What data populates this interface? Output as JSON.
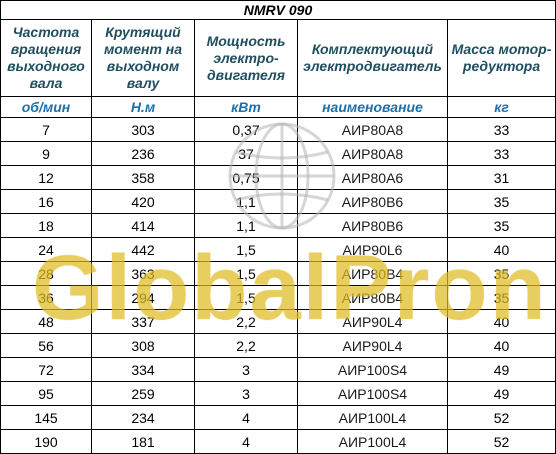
{
  "title": "NMRV 090",
  "headers": [
    "Частота вращения выходного вала",
    "Крутящий момент на выходном валу",
    "Мощность электро-двигателя",
    "Комплектующий электродвигатель",
    "Масса мотор-редуктора"
  ],
  "units": [
    "об/мин",
    "Н.м",
    "кВт",
    "наименование",
    "кг"
  ],
  "rows": [
    [
      "7",
      "303",
      "0,37",
      "АИР80А8",
      "33"
    ],
    [
      "9",
      "236",
      "37",
      "АИР80А8",
      "33"
    ],
    [
      "12",
      "358",
      "0,75",
      "АИР80А6",
      "31"
    ],
    [
      "16",
      "420",
      "1,1",
      "АИР80В6",
      "35"
    ],
    [
      "18",
      "414",
      "1,1",
      "АИР80В6",
      "35"
    ],
    [
      "24",
      "442",
      "1,5",
      "АИР90L6",
      "40"
    ],
    [
      "28",
      "363",
      "1,5",
      "АИР80В4",
      "35"
    ],
    [
      "36",
      "294",
      "1,5",
      "АИР80В4",
      "35"
    ],
    [
      "48",
      "337",
      "2,2",
      "АИР90L4",
      "40"
    ],
    [
      "56",
      "308",
      "2,2",
      "АИР90L4",
      "40"
    ],
    [
      "72",
      "334",
      "3",
      "АИР100S4",
      "49"
    ],
    [
      "95",
      "259",
      "3",
      "АИР100S4",
      "49"
    ],
    [
      "145",
      "234",
      "4",
      "АИР100L4",
      "52"
    ],
    [
      "190",
      "181",
      "4",
      "АИР100L4",
      "52"
    ]
  ],
  "watermark": "GlobalPron",
  "colors": {
    "header_text": "#1f4e5f",
    "unit_text": "#1f6fa8",
    "watermark": "#e8c428"
  }
}
